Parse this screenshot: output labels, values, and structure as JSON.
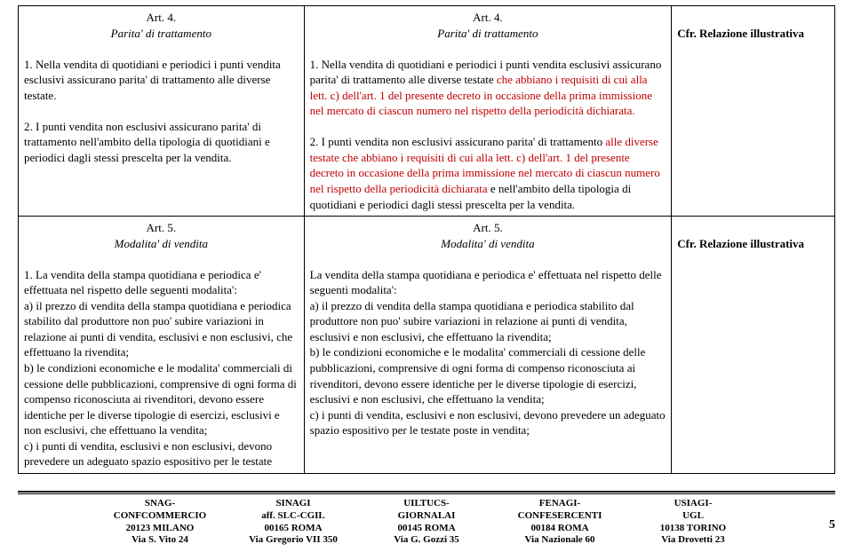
{
  "row1": {
    "left": {
      "art": "Art. 4.",
      "title": "Parita' di trattamento",
      "p1": "1. Nella vendita di quotidiani e periodici i punti vendita esclusivi assicurano parita' di trattamento alle diverse testate.",
      "p2": "2. I punti vendita non esclusivi assicurano parita' di trattamento nell'ambito della tipologia di quotidiani e periodici dagli stessi prescelta per la vendita."
    },
    "mid": {
      "art": "Art. 4.",
      "title": "Parita' di trattamento",
      "p1a": "1. Nella vendita di quotidiani e periodici i punti vendita esclusivi assicurano parita' di trattamento alle diverse testate ",
      "p1b": "che abbiano i requisiti di cui alla lett. c) dell'art. 1 del presente decreto in occasione della prima immissione nel mercato di ciascun numero nel rispetto della periodicità dichiarata.",
      "p2a": "2. I punti vendita non esclusivi assicurano parita' di trattamento ",
      "p2b": "alle diverse testate che abbiano i requisiti di cui alla lett. c) dell'art. 1 del presente decreto in occasione della prima immissione nel mercato di ciascun numero nel rispetto della periodicità dichiarata",
      "p2c": " e nell'ambito della tipologia di quotidiani e periodici dagli stessi prescelta per la vendita."
    },
    "right": "Cfr. Relazione illustrativa"
  },
  "row2": {
    "left": {
      "art": "Art. 5.",
      "title": "Modalita' di vendita",
      "p1": "1. La vendita della stampa quotidiana e periodica e' effettuata nel rispetto delle seguenti modalita':",
      "pa": "a) il prezzo di vendita della stampa quotidiana e periodica stabilito dal produttore non puo' subire variazioni in relazione ai punti di vendita, esclusivi e non esclusivi, che effettuano la rivendita;",
      "pb": "b) le condizioni economiche e le modalita' commerciali di cessione delle pubblicazioni, comprensive di ogni forma di compenso riconosciuta ai rivenditori, devono essere identiche per le diverse tipologie di esercizi, esclusivi e non esclusivi, che effettuano la vendita;",
      "pc": "c) i punti di vendita, esclusivi e non esclusivi, devono prevedere un adeguato spazio espositivo per le testate"
    },
    "mid": {
      "art": "Art. 5.",
      "title": "Modalita' di vendita",
      "p1": "La vendita della stampa quotidiana e periodica e' effettuata nel rispetto delle seguenti modalita':",
      "pa": "a) il prezzo di vendita della stampa quotidiana e periodica stabilito dal produttore non puo' subire variazioni in relazione ai punti di vendita, esclusivi e non esclusivi, che effettuano la rivendita;",
      "pb": "b) le condizioni economiche e le modalita' commerciali di cessione delle pubblicazioni, comprensive di ogni forma di compenso riconosciuta ai rivenditori, devono essere identiche per le diverse tipologie di esercizi, esclusivi e non esclusivi, che effettuano la vendita;",
      "pc": "c) i punti di vendita, esclusivi e non esclusivi, devono prevedere un adeguato spazio espositivo per le testate poste in vendita;"
    },
    "right": "Cfr. Relazione illustrativa"
  },
  "footer": {
    "orgs": [
      {
        "l1": "SNAG-",
        "l2": "CONFCOMMERCIO",
        "l3": "20123 MILANO",
        "l4": "Via S. Vito 24"
      },
      {
        "l1": "SINAGI",
        "l2": "aff. SLC-CGIL",
        "l3": "00165 ROMA",
        "l4": "Via Gregorio VII 350"
      },
      {
        "l1": "UILTUCS-",
        "l2": "GIORNALAI",
        "l3": "00145 ROMA",
        "l4": "Via G. Gozzi 35"
      },
      {
        "l1": "FENAGI-",
        "l2": "CONFESERCENTI",
        "l3": "00184 ROMA",
        "l4": "Via Nazionale 60"
      },
      {
        "l1": "USIAGI-",
        "l2": "UGL",
        "l3": "10138 TORINO",
        "l4": "Via Drovetti 23"
      }
    ],
    "page": "5"
  }
}
